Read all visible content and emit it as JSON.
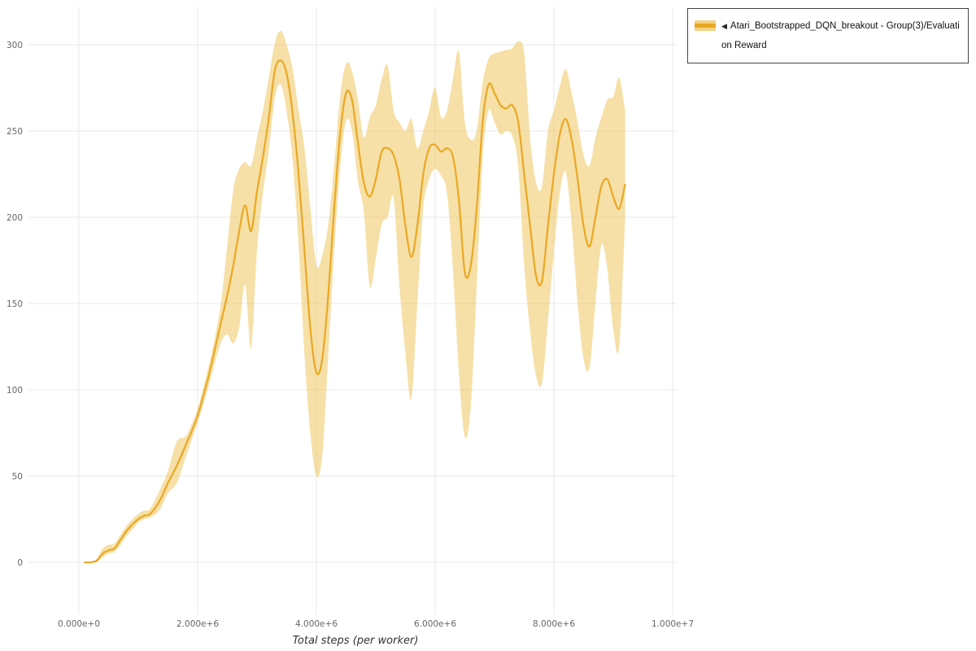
{
  "colors": {
    "line": "#e9a824",
    "band": "#efc75e",
    "band_opacity": 0.55,
    "grid": "#e8e8e8",
    "tick_text": "#666666",
    "axis_label_text": "#333333",
    "background": "#ffffff"
  },
  "legend": {
    "arrow": "◀",
    "label": "Atari_Bootstrapped_DQN_breakout - Group(3)/Evaluation Reward"
  },
  "chart_data": {
    "type": "line",
    "title": "",
    "xlabel": "Total steps (per worker)",
    "ylabel": "",
    "grid": true,
    "legend_position": "top-right",
    "x_unit_steps": 1000000,
    "xlim_millions": [
      -0.85,
      10.07
    ],
    "ylim": [
      -30,
      322
    ],
    "x_ticks": [
      "0.000e+0",
      "2.000e+6",
      "4.000e+6",
      "6.000e+6",
      "8.000e+6",
      "1.000e+7"
    ],
    "x_tick_values_millions": [
      0,
      2,
      4,
      6,
      8,
      10
    ],
    "y_tick_values": [
      0,
      50,
      100,
      150,
      200,
      250,
      300
    ],
    "series": [
      {
        "name": "Atari_Bootstrapped_DQN_breakout - Group(3)/Evaluation Reward",
        "note": "points are [x_in_millions_of_steps, mean_reward, band_lower, band_upper]",
        "points": [
          [
            0.1,
            0,
            0,
            0
          ],
          [
            0.2,
            0,
            0,
            0
          ],
          [
            0.3,
            1,
            0,
            2
          ],
          [
            0.4,
            5,
            3,
            8
          ],
          [
            0.5,
            7,
            5,
            10
          ],
          [
            0.6,
            8,
            6,
            11
          ],
          [
            0.7,
            13,
            10,
            16
          ],
          [
            0.8,
            18,
            15,
            21
          ],
          [
            0.9,
            22,
            19,
            25
          ],
          [
            1.0,
            25,
            23,
            28
          ],
          [
            1.1,
            27,
            25,
            30
          ],
          [
            1.2,
            28,
            26,
            31
          ],
          [
            1.35,
            35,
            30,
            41
          ],
          [
            1.5,
            46,
            40,
            53
          ],
          [
            1.65,
            56,
            46,
            70
          ],
          [
            1.8,
            68,
            61,
            73
          ],
          [
            1.9,
            76,
            71,
            80
          ],
          [
            2.0,
            85,
            81,
            89
          ],
          [
            2.1,
            97,
            92,
            102
          ],
          [
            2.2,
            110,
            104,
            116
          ],
          [
            2.3,
            125,
            117,
            132
          ],
          [
            2.4,
            140,
            128,
            152
          ],
          [
            2.5,
            155,
            132,
            184
          ],
          [
            2.6,
            172,
            127,
            216
          ],
          [
            2.7,
            192,
            136,
            228
          ],
          [
            2.8,
            207,
            161,
            232
          ],
          [
            2.9,
            192,
            124,
            230
          ],
          [
            3.0,
            215,
            181,
            246
          ],
          [
            3.1,
            235,
            214,
            262
          ],
          [
            3.2,
            258,
            239,
            281
          ],
          [
            3.3,
            285,
            269,
            301
          ],
          [
            3.4,
            291,
            277,
            308
          ],
          [
            3.5,
            283,
            261,
            300
          ],
          [
            3.6,
            260,
            233,
            286
          ],
          [
            3.7,
            225,
            184,
            262
          ],
          [
            3.8,
            180,
            120,
            240
          ],
          [
            3.9,
            135,
            74,
            205
          ],
          [
            4.0,
            110,
            50,
            172
          ],
          [
            4.1,
            118,
            62,
            178
          ],
          [
            4.2,
            155,
            120,
            196
          ],
          [
            4.3,
            205,
            180,
            230
          ],
          [
            4.4,
            248,
            228,
            270
          ],
          [
            4.5,
            272,
            256,
            289
          ],
          [
            4.6,
            268,
            250,
            285
          ],
          [
            4.7,
            243,
            221,
            268
          ],
          [
            4.8,
            220,
            203,
            246
          ],
          [
            4.9,
            212,
            160,
            258
          ],
          [
            5.0,
            222,
            176,
            265
          ],
          [
            5.1,
            238,
            196,
            280
          ],
          [
            5.2,
            240,
            200,
            288
          ],
          [
            5.3,
            236,
            211,
            262
          ],
          [
            5.4,
            222,
            160,
            255
          ],
          [
            5.5,
            195,
            121,
            250
          ],
          [
            5.6,
            177,
            95,
            257
          ],
          [
            5.7,
            195,
            150,
            240
          ],
          [
            5.8,
            225,
            205,
            250
          ],
          [
            5.9,
            240,
            222,
            262
          ],
          [
            6.0,
            242,
            228,
            275
          ],
          [
            6.1,
            238,
            224,
            258
          ],
          [
            6.2,
            240,
            214,
            262
          ],
          [
            6.3,
            235,
            170,
            280
          ],
          [
            6.4,
            210,
            110,
            296
          ],
          [
            6.5,
            168,
            73,
            255
          ],
          [
            6.6,
            172,
            90,
            245
          ],
          [
            6.7,
            205,
            160,
            250
          ],
          [
            6.8,
            255,
            234,
            278
          ],
          [
            6.9,
            277,
            262,
            292
          ],
          [
            7.0,
            272,
            255,
            295
          ],
          [
            7.1,
            265,
            248,
            296
          ],
          [
            7.2,
            263,
            250,
            297
          ],
          [
            7.3,
            265,
            247,
            298
          ],
          [
            7.4,
            255,
            229,
            302
          ],
          [
            7.5,
            225,
            172,
            295
          ],
          [
            7.6,
            195,
            134,
            246
          ],
          [
            7.7,
            166,
            108,
            220
          ],
          [
            7.8,
            163,
            104,
            218
          ],
          [
            7.9,
            195,
            140,
            250
          ],
          [
            8.0,
            225,
            180,
            262
          ],
          [
            8.1,
            248,
            214,
            276
          ],
          [
            8.2,
            257,
            226,
            286
          ],
          [
            8.3,
            245,
            196,
            272
          ],
          [
            8.4,
            222,
            150,
            255
          ],
          [
            8.5,
            195,
            118,
            236
          ],
          [
            8.6,
            183,
            113,
            230
          ],
          [
            8.7,
            200,
            150,
            246
          ],
          [
            8.8,
            218,
            184,
            258
          ],
          [
            8.9,
            222,
            170,
            268
          ],
          [
            9.0,
            212,
            135,
            270
          ],
          [
            9.1,
            205,
            125,
            281
          ],
          [
            9.2,
            219,
            200,
            262
          ]
        ]
      }
    ]
  }
}
